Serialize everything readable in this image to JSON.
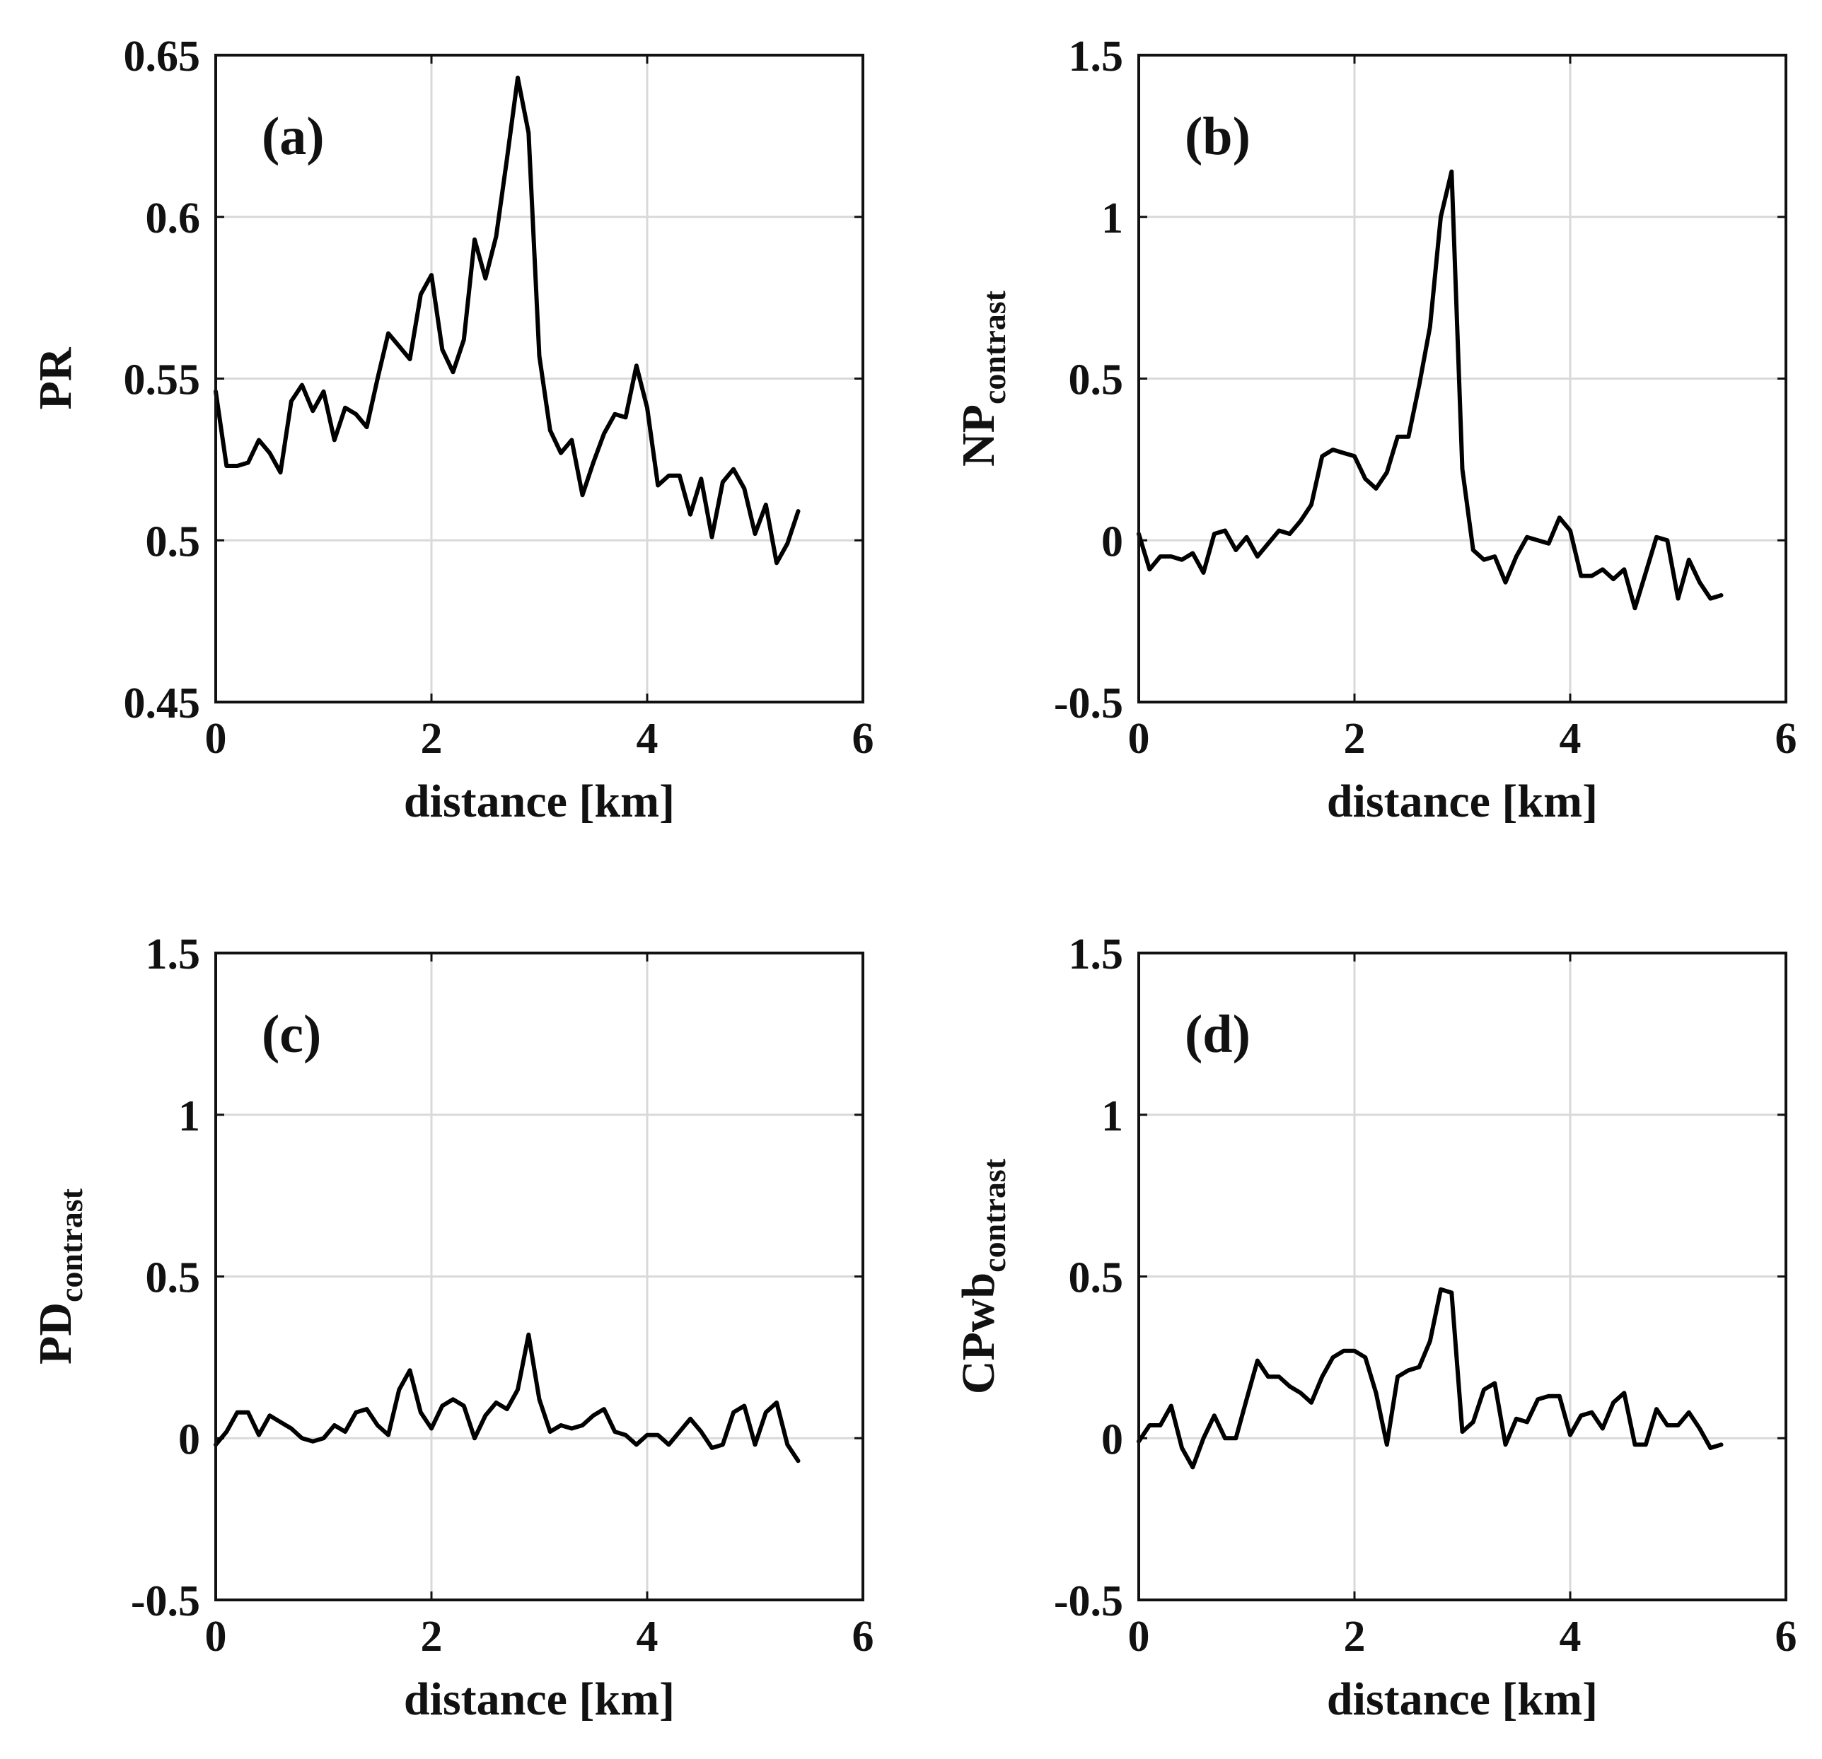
{
  "chart_data": [
    {
      "type": "line",
      "panel_label": "(a)",
      "ylabel_main": "PR",
      "ylabel_sub": "",
      "xlabel": "distance [km]",
      "xlim": [
        0,
        6
      ],
      "ylim": [
        0.45,
        0.65
      ],
      "xticks": [
        0,
        2,
        4,
        6
      ],
      "xtick_labels": [
        "0",
        "2",
        "4",
        "6"
      ],
      "yticks": [
        0.45,
        0.5,
        0.55,
        0.6,
        0.65
      ],
      "ytick_labels": [
        "0.45",
        "0.5",
        "0.55",
        "0.6",
        "0.65"
      ],
      "grid": true,
      "x": [
        0,
        0.1,
        0.2,
        0.3,
        0.4,
        0.5,
        0.6,
        0.7,
        0.8,
        0.9,
        1.0,
        1.1,
        1.2,
        1.3,
        1.4,
        1.5,
        1.6,
        1.7,
        1.8,
        1.9,
        2.0,
        2.1,
        2.2,
        2.3,
        2.4,
        2.5,
        2.6,
        2.7,
        2.8,
        2.9,
        3.0,
        3.1,
        3.2,
        3.3,
        3.4,
        3.5,
        3.6,
        3.7,
        3.8,
        3.9,
        4.0,
        4.1,
        4.2,
        4.3,
        4.4,
        4.5,
        4.6,
        4.7,
        4.8,
        4.9,
        5.0,
        5.1,
        5.2,
        5.3,
        5.4
      ],
      "y": [
        0.546,
        0.523,
        0.523,
        0.524,
        0.531,
        0.527,
        0.521,
        0.543,
        0.548,
        0.54,
        0.546,
        0.531,
        0.541,
        0.539,
        0.535,
        0.55,
        0.564,
        0.56,
        0.556,
        0.576,
        0.582,
        0.559,
        0.552,
        0.562,
        0.593,
        0.581,
        0.594,
        0.618,
        0.643,
        0.626,
        0.557,
        0.534,
        0.527,
        0.531,
        0.514,
        0.524,
        0.533,
        0.539,
        0.538,
        0.554,
        0.541,
        0.517,
        0.52,
        0.52,
        0.508,
        0.519,
        0.501,
        0.518,
        0.522,
        0.516,
        0.502,
        0.511,
        0.493,
        0.499,
        0.509
      ]
    },
    {
      "type": "line",
      "panel_label": "(b)",
      "ylabel_main": "NP",
      "ylabel_sub": "contrast",
      "xlabel": "distance [km]",
      "xlim": [
        0,
        6
      ],
      "ylim": [
        -0.5,
        1.5
      ],
      "xticks": [
        0,
        2,
        4,
        6
      ],
      "xtick_labels": [
        "0",
        "2",
        "4",
        "6"
      ],
      "yticks": [
        -0.5,
        0,
        0.5,
        1,
        1.5
      ],
      "ytick_labels": [
        "-0.5",
        "0",
        "0.5",
        "1",
        "1.5"
      ],
      "grid": true,
      "x": [
        0,
        0.1,
        0.2,
        0.3,
        0.4,
        0.5,
        0.6,
        0.7,
        0.8,
        0.9,
        1.0,
        1.1,
        1.2,
        1.3,
        1.4,
        1.5,
        1.6,
        1.7,
        1.8,
        1.9,
        2.0,
        2.1,
        2.2,
        2.3,
        2.4,
        2.5,
        2.6,
        2.7,
        2.8,
        2.9,
        3.0,
        3.1,
        3.2,
        3.3,
        3.4,
        3.5,
        3.6,
        3.7,
        3.8,
        3.9,
        4.0,
        4.1,
        4.2,
        4.3,
        4.4,
        4.5,
        4.6,
        4.7,
        4.8,
        4.9,
        5.0,
        5.1,
        5.2,
        5.3,
        5.4
      ],
      "y": [
        0.02,
        -0.09,
        -0.05,
        -0.05,
        -0.06,
        -0.04,
        -0.1,
        0.02,
        0.03,
        -0.03,
        0.01,
        -0.05,
        -0.01,
        0.03,
        0.02,
        0.06,
        0.11,
        0.26,
        0.28,
        0.27,
        0.26,
        0.19,
        0.16,
        0.21,
        0.32,
        0.32,
        0.48,
        0.66,
        1.0,
        1.14,
        0.22,
        -0.03,
        -0.06,
        -0.05,
        -0.13,
        -0.05,
        0.01,
        0.0,
        -0.01,
        0.07,
        0.03,
        -0.11,
        -0.11,
        -0.09,
        -0.12,
        -0.09,
        -0.21,
        -0.1,
        0.01,
        0.0,
        -0.18,
        -0.06,
        -0.13,
        -0.18,
        -0.17
      ]
    },
    {
      "type": "line",
      "panel_label": "(c)",
      "ylabel_main": "PD",
      "ylabel_sub": "contrast",
      "xlabel": "distance [km]",
      "xlim": [
        0,
        6
      ],
      "ylim": [
        -0.5,
        1.5
      ],
      "xticks": [
        0,
        2,
        4,
        6
      ],
      "xtick_labels": [
        "0",
        "2",
        "4",
        "6"
      ],
      "yticks": [
        -0.5,
        0,
        0.5,
        1,
        1.5
      ],
      "ytick_labels": [
        "-0.5",
        "0",
        "0.5",
        "1",
        "1.5"
      ],
      "grid": true,
      "x": [
        0,
        0.1,
        0.2,
        0.3,
        0.4,
        0.5,
        0.6,
        0.7,
        0.8,
        0.9,
        1.0,
        1.1,
        1.2,
        1.3,
        1.4,
        1.5,
        1.6,
        1.7,
        1.8,
        1.9,
        2.0,
        2.1,
        2.2,
        2.3,
        2.4,
        2.5,
        2.6,
        2.7,
        2.8,
        2.9,
        3.0,
        3.1,
        3.2,
        3.3,
        3.4,
        3.5,
        3.6,
        3.7,
        3.8,
        3.9,
        4.0,
        4.1,
        4.2,
        4.3,
        4.4,
        4.5,
        4.6,
        4.7,
        4.8,
        4.9,
        5.0,
        5.1,
        5.2,
        5.3,
        5.4
      ],
      "y": [
        -0.02,
        0.02,
        0.08,
        0.08,
        0.01,
        0.07,
        0.05,
        0.03,
        0.0,
        -0.01,
        0.0,
        0.04,
        0.02,
        0.08,
        0.09,
        0.04,
        0.01,
        0.15,
        0.21,
        0.08,
        0.03,
        0.1,
        0.12,
        0.1,
        0.0,
        0.07,
        0.11,
        0.09,
        0.15,
        0.32,
        0.12,
        0.02,
        0.04,
        0.03,
        0.04,
        0.07,
        0.09,
        0.02,
        0.01,
        -0.02,
        0.01,
        0.01,
        -0.02,
        0.02,
        0.06,
        0.02,
        -0.03,
        -0.02,
        0.08,
        0.1,
        -0.02,
        0.08,
        0.11,
        -0.02,
        -0.07
      ]
    },
    {
      "type": "line",
      "panel_label": "(d)",
      "ylabel_main": "CPwb",
      "ylabel_sub": "contrast",
      "xlabel": "distance [km]",
      "xlim": [
        0,
        6
      ],
      "ylim": [
        -0.5,
        1.5
      ],
      "xticks": [
        0,
        2,
        4,
        6
      ],
      "xtick_labels": [
        "0",
        "2",
        "4",
        "6"
      ],
      "yticks": [
        -0.5,
        0,
        0.5,
        1,
        1.5
      ],
      "ytick_labels": [
        "-0.5",
        "0",
        "0.5",
        "1",
        "1.5"
      ],
      "grid": true,
      "x": [
        0,
        0.1,
        0.2,
        0.3,
        0.4,
        0.5,
        0.6,
        0.7,
        0.8,
        0.9,
        1.0,
        1.1,
        1.2,
        1.3,
        1.4,
        1.5,
        1.6,
        1.7,
        1.8,
        1.9,
        2.0,
        2.1,
        2.2,
        2.3,
        2.4,
        2.5,
        2.6,
        2.7,
        2.8,
        2.9,
        3.0,
        3.1,
        3.2,
        3.3,
        3.4,
        3.5,
        3.6,
        3.7,
        3.8,
        3.9,
        4.0,
        4.1,
        4.2,
        4.3,
        4.4,
        4.5,
        4.6,
        4.7,
        4.8,
        4.9,
        5.0,
        5.1,
        5.2,
        5.3,
        5.4
      ],
      "y": [
        -0.01,
        0.04,
        0.04,
        0.1,
        -0.03,
        -0.09,
        0.0,
        0.07,
        0.0,
        0.0,
        0.12,
        0.24,
        0.19,
        0.19,
        0.16,
        0.14,
        0.11,
        0.19,
        0.25,
        0.27,
        0.27,
        0.25,
        0.14,
        -0.02,
        0.19,
        0.21,
        0.22,
        0.3,
        0.46,
        0.45,
        0.02,
        0.05,
        0.15,
        0.17,
        -0.02,
        0.06,
        0.05,
        0.12,
        0.13,
        0.13,
        0.01,
        0.07,
        0.08,
        0.03,
        0.11,
        0.14,
        -0.02,
        -0.02,
        0.09,
        0.04,
        0.04,
        0.08,
        0.03,
        -0.03,
        -0.02
      ]
    }
  ]
}
